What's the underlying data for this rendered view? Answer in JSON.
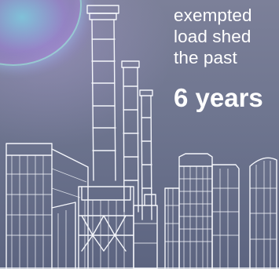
{
  "headline": {
    "line1": "exempted",
    "line2": "load shed",
    "line3": "the past",
    "emphasis": "6 years"
  },
  "colors": {
    "background": "#6f7690",
    "text": "#ffffff",
    "sketch": "#f4f6fb",
    "glow": "#8ff0ff"
  },
  "illustration": "power-station-line-sketch"
}
